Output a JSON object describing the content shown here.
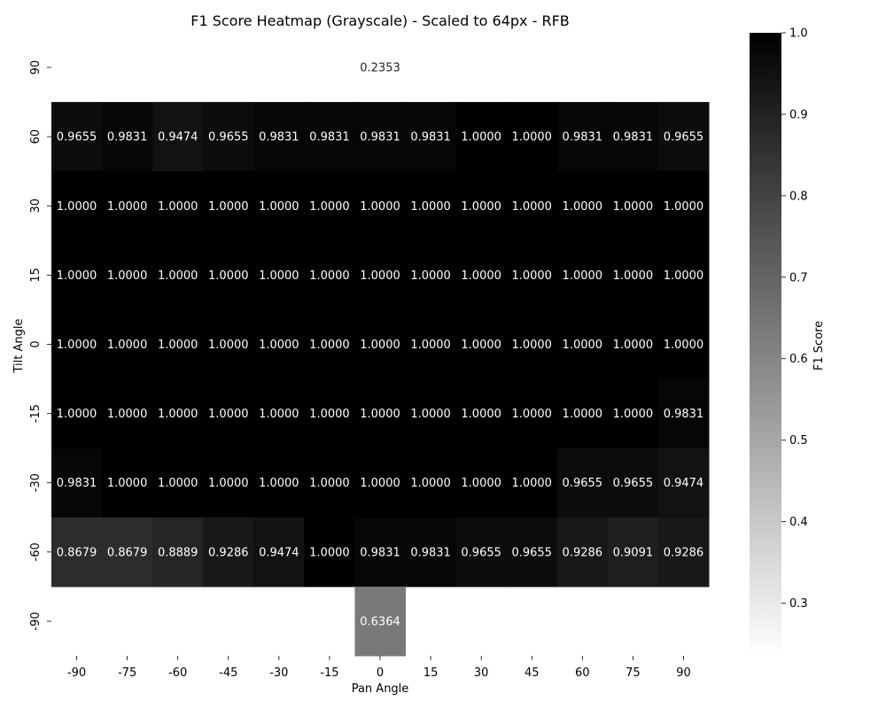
{
  "chart_data": {
    "type": "heatmap",
    "title": "F1 Score Heatmap (Grayscale) - Scaled to 64px - RFB",
    "xlabel": "Pan Angle",
    "ylabel": "Tilt Angle",
    "colorbar_label": "F1 Score",
    "x": [
      "-90",
      "-75",
      "-60",
      "-45",
      "-30",
      "-15",
      "0",
      "15",
      "30",
      "45",
      "60",
      "75",
      "90"
    ],
    "y": [
      "90",
      "60",
      "30",
      "15",
      "0",
      "-15",
      "-30",
      "-60",
      "-90"
    ],
    "values": [
      [
        null,
        null,
        null,
        null,
        null,
        null,
        0.2353,
        null,
        null,
        null,
        null,
        null,
        null
      ],
      [
        0.9655,
        0.9831,
        0.9474,
        0.9655,
        0.9831,
        0.9831,
        0.9831,
        0.9831,
        1.0,
        1.0,
        0.9831,
        0.9831,
        0.9655
      ],
      [
        1.0,
        1.0,
        1.0,
        1.0,
        1.0,
        1.0,
        1.0,
        1.0,
        1.0,
        1.0,
        1.0,
        1.0,
        1.0
      ],
      [
        1.0,
        1.0,
        1.0,
        1.0,
        1.0,
        1.0,
        1.0,
        1.0,
        1.0,
        1.0,
        1.0,
        1.0,
        1.0
      ],
      [
        1.0,
        1.0,
        1.0,
        1.0,
        1.0,
        1.0,
        1.0,
        1.0,
        1.0,
        1.0,
        1.0,
        1.0,
        1.0
      ],
      [
        1.0,
        1.0,
        1.0,
        1.0,
        1.0,
        1.0,
        1.0,
        1.0,
        1.0,
        1.0,
        1.0,
        1.0,
        0.9831
      ],
      [
        0.9831,
        1.0,
        1.0,
        1.0,
        1.0,
        1.0,
        1.0,
        1.0,
        1.0,
        1.0,
        0.9655,
        0.9655,
        0.9474
      ],
      [
        0.8679,
        0.8679,
        0.8889,
        0.9286,
        0.9474,
        1.0,
        0.9831,
        0.9831,
        0.9655,
        0.9655,
        0.9286,
        0.9091,
        0.9286
      ],
      [
        null,
        null,
        null,
        null,
        null,
        null,
        0.6364,
        null,
        null,
        null,
        null,
        null,
        null
      ]
    ],
    "value_range": [
      0.2353,
      1.0
    ],
    "colormap": "grayscale (white = low, black = high)",
    "colorbar_ticks": [
      "0.3",
      "0.4",
      "0.5",
      "0.6",
      "0.7",
      "0.8",
      "0.9",
      "1.0"
    ],
    "grid": false,
    "legend": "colorbar right"
  }
}
